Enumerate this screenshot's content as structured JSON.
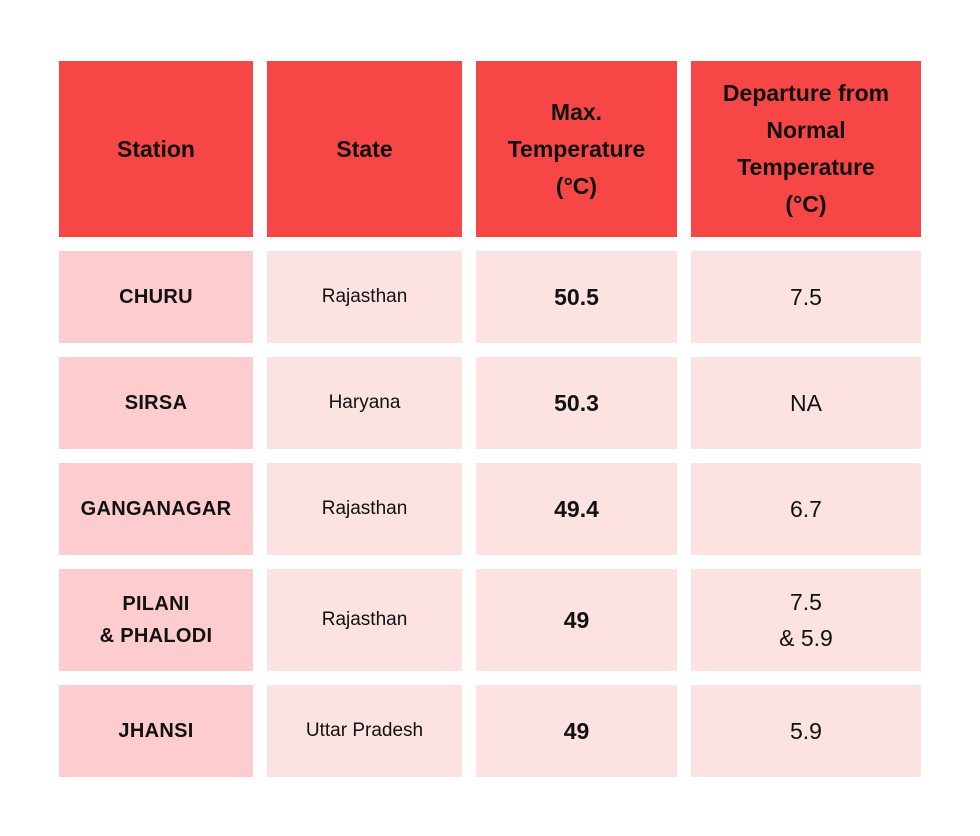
{
  "columns": [
    "Station",
    "State",
    "Max.\nTemperature\n(°C)",
    "Departure from\nNormal\nTemperature\n(°C)"
  ],
  "rows": [
    {
      "station": "CHURU",
      "state": "Rajasthan",
      "max_temp": "50.5",
      "departure": "7.5"
    },
    {
      "station": "SIRSA",
      "state": "Haryana",
      "max_temp": "50.3",
      "departure": "NA"
    },
    {
      "station": "GANGANAGAR",
      "state": "Rajasthan",
      "max_temp": "49.4",
      "departure": "6.7"
    },
    {
      "station": "PILANI\n& PHALODI",
      "state": "Rajasthan",
      "max_temp": "49",
      "departure": "7.5\n& 5.9"
    },
    {
      "station": "JHANSI",
      "state": "Uttar Pradesh",
      "max_temp": "49",
      "departure": "5.9"
    }
  ],
  "colors": {
    "header_bg": "#f64646",
    "station_bg": "#fcccce",
    "cell_bg": "#fde2e2"
  }
}
